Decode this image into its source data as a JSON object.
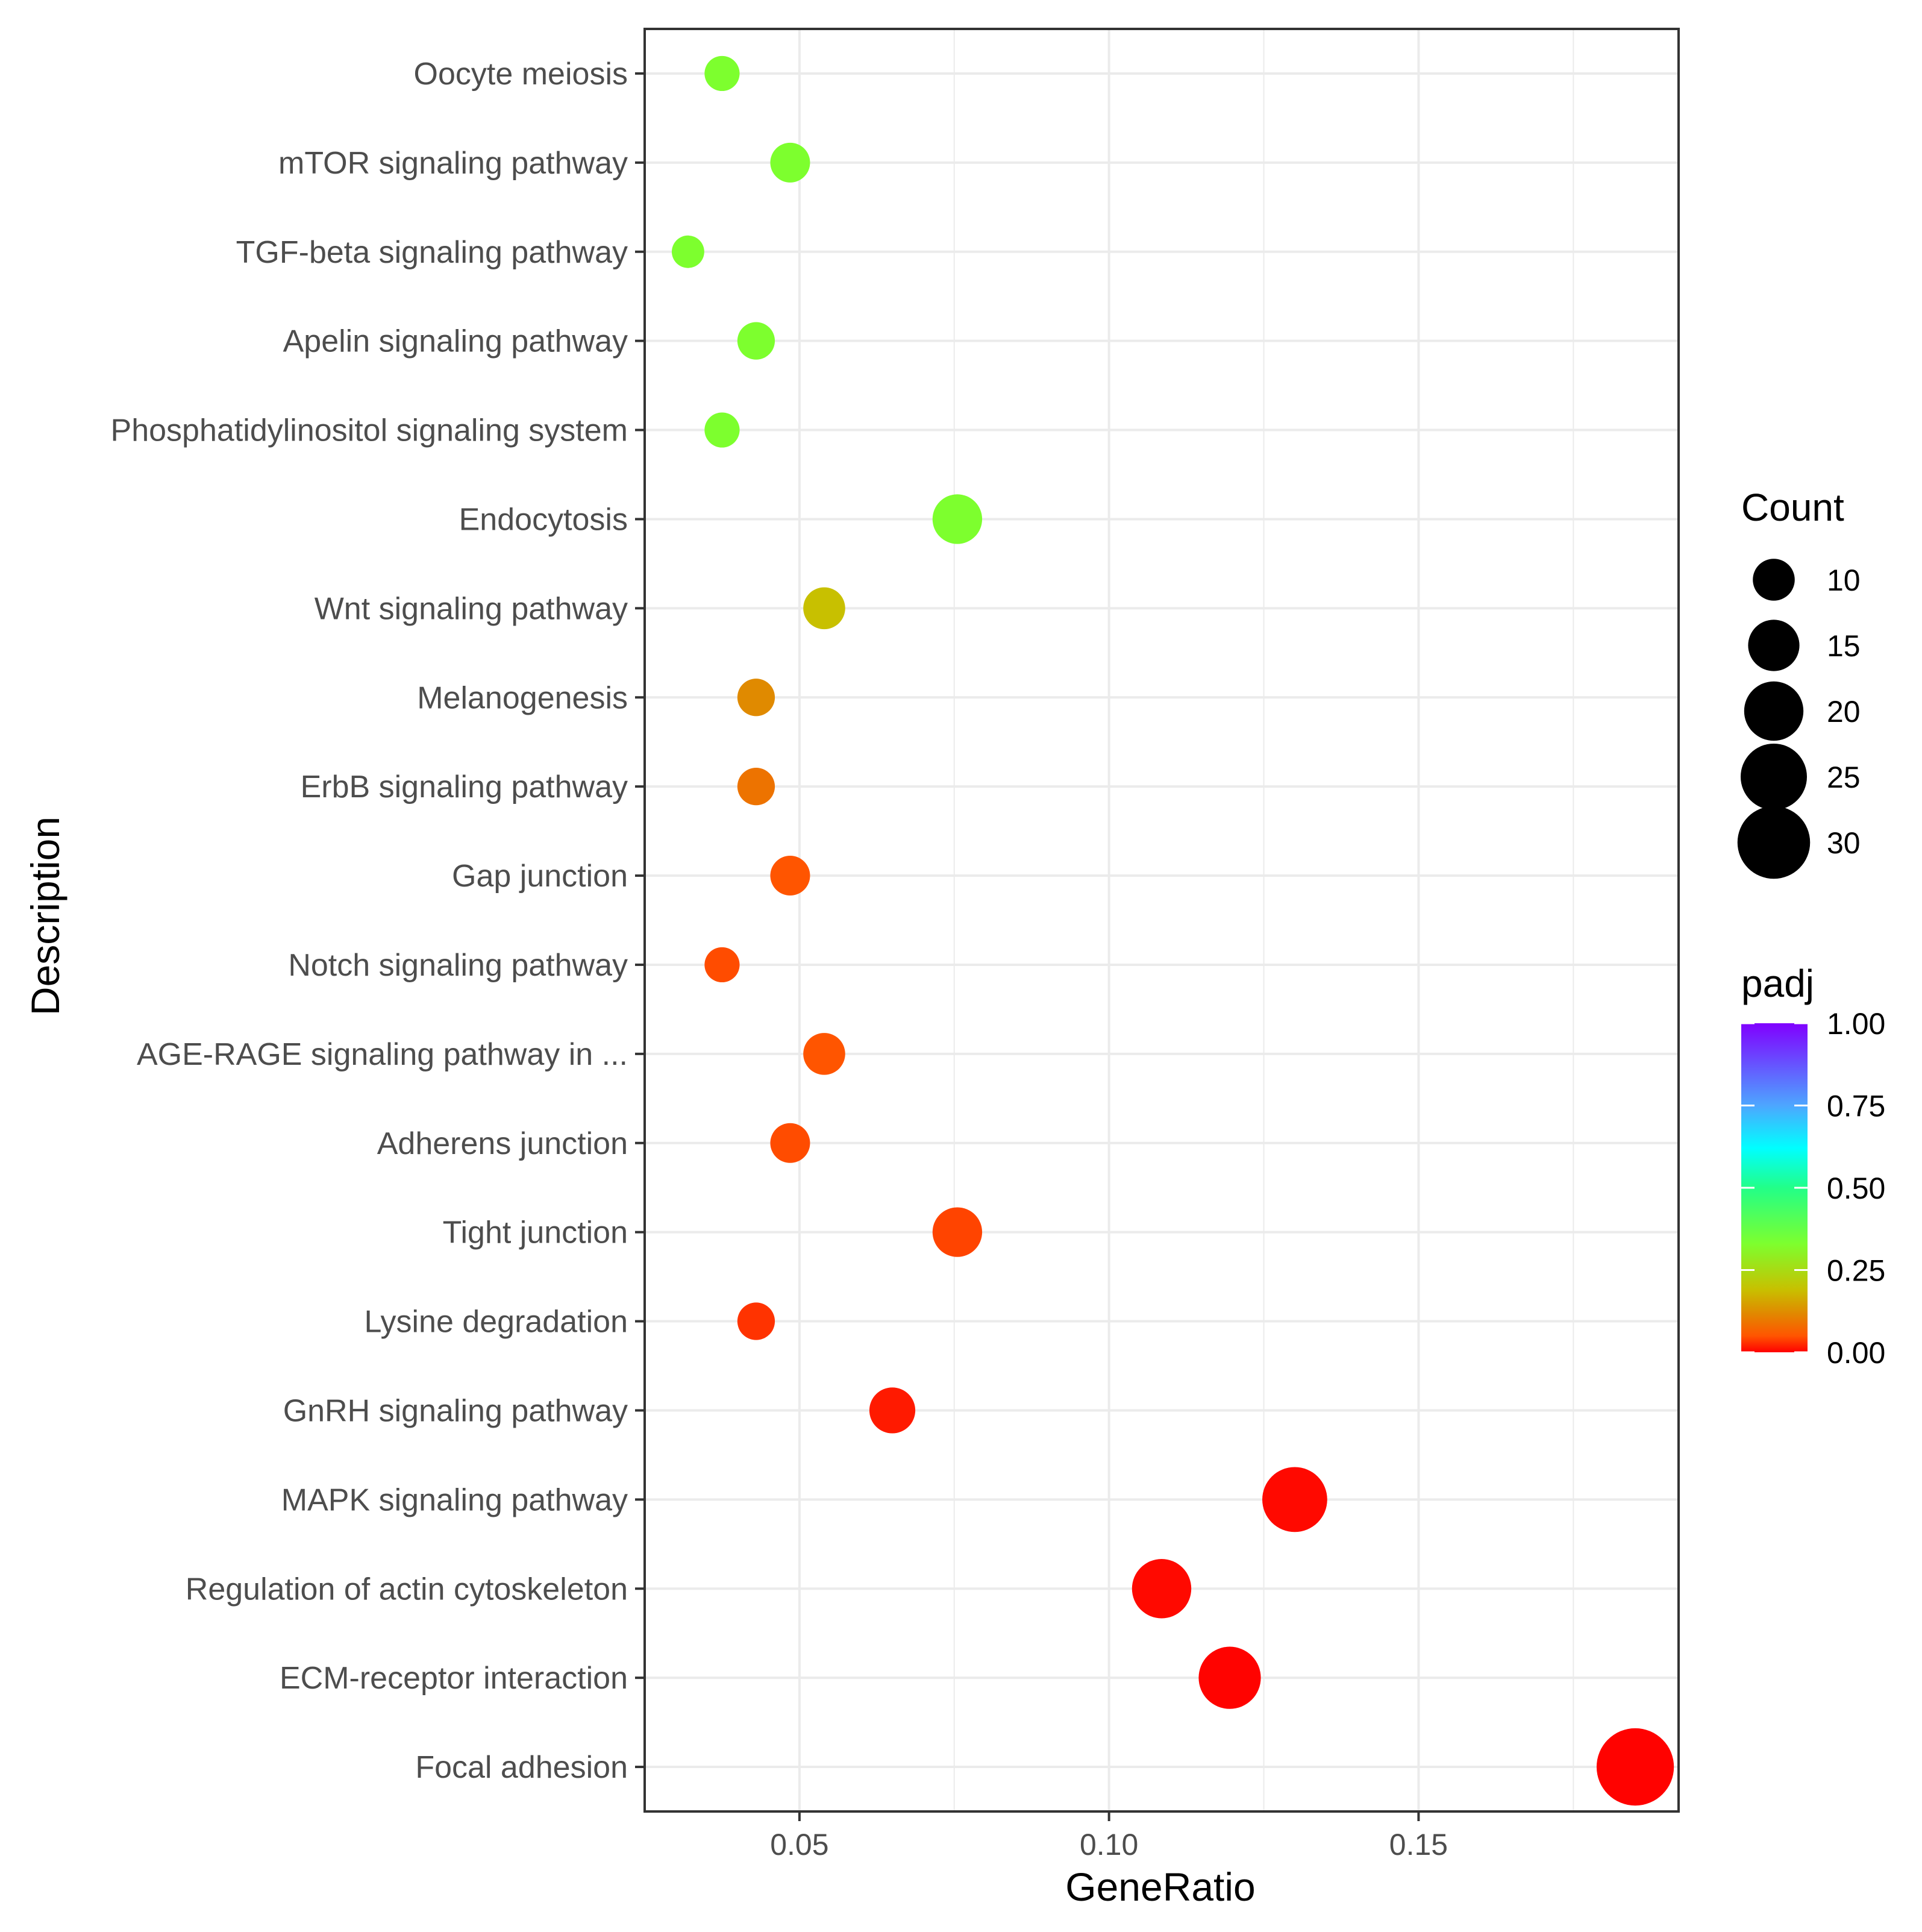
{
  "chart_data": {
    "type": "scatter",
    "subtype": "dot-plot",
    "xlabel": "GeneRatio",
    "ylabel": "Description",
    "xlim": [
      0.025,
      0.192
    ],
    "xticks": [
      0.05,
      0.1,
      0.15
    ],
    "xtick_labels": [
      "0.05",
      "0.10",
      "0.15"
    ],
    "grid": true,
    "legend_position": "right",
    "categories": [
      "Oocyte meiosis",
      "mTOR signaling pathway",
      "TGF-beta signaling pathway",
      "Apelin signaling pathway",
      "Phosphatidylinositol signaling system",
      "Endocytosis",
      "Wnt signaling pathway",
      "Melanogenesis",
      "ErbB signaling pathway",
      "Gap junction",
      "Notch signaling pathway",
      "AGE-RAGE signaling pathway in ...",
      "Adherens junction",
      "Tight junction",
      "Lysine degradation",
      "GnRH signaling pathway",
      "MAPK signaling pathway",
      "Regulation of actin cytoskeleton",
      "ECM-receptor interaction",
      "Focal adhesion"
    ],
    "points": [
      {
        "term": "Oocyte meiosis",
        "gene_ratio": 0.0375,
        "count": 7,
        "padj": 0.33
      },
      {
        "term": "mTOR signaling pathway",
        "gene_ratio": 0.0485,
        "count": 9,
        "padj": 0.33
      },
      {
        "term": "TGF-beta signaling pathway",
        "gene_ratio": 0.032,
        "count": 6,
        "padj": 0.33
      },
      {
        "term": "Apelin signaling pathway",
        "gene_ratio": 0.043,
        "count": 8,
        "padj": 0.33
      },
      {
        "term": "Phosphatidylinositol signaling system",
        "gene_ratio": 0.0375,
        "count": 7,
        "padj": 0.33
      },
      {
        "term": "Endocytosis",
        "gene_ratio": 0.0755,
        "count": 14,
        "padj": 0.33
      },
      {
        "term": "Wnt signaling pathway",
        "gene_ratio": 0.054,
        "count": 10,
        "padj": 0.19
      },
      {
        "term": "Melanogenesis",
        "gene_ratio": 0.043,
        "count": 8,
        "padj": 0.12
      },
      {
        "term": "ErbB signaling pathway",
        "gene_ratio": 0.043,
        "count": 8,
        "padj": 0.09
      },
      {
        "term": "Gap junction",
        "gene_ratio": 0.0485,
        "count": 9,
        "padj": 0.05
      },
      {
        "term": "Notch signaling pathway",
        "gene_ratio": 0.0375,
        "count": 7,
        "padj": 0.045
      },
      {
        "term": "AGE-RAGE signaling pathway in ...",
        "gene_ratio": 0.054,
        "count": 10,
        "padj": 0.05
      },
      {
        "term": "Adherens junction",
        "gene_ratio": 0.0485,
        "count": 9,
        "padj": 0.045
      },
      {
        "term": "Tight junction",
        "gene_ratio": 0.0755,
        "count": 14,
        "padj": 0.04
      },
      {
        "term": "Lysine degradation",
        "gene_ratio": 0.043,
        "count": 8,
        "padj": 0.03
      },
      {
        "term": "GnRH signaling pathway",
        "gene_ratio": 0.065,
        "count": 12,
        "padj": 0.015
      },
      {
        "term": "MAPK signaling pathway",
        "gene_ratio": 0.13,
        "count": 24,
        "padj": 0.005
      },
      {
        "term": "Regulation of actin cytoskeleton",
        "gene_ratio": 0.1085,
        "count": 20,
        "padj": 0.005
      },
      {
        "term": "ECM-receptor interaction",
        "gene_ratio": 0.1195,
        "count": 22,
        "padj": 0.002
      },
      {
        "term": "Focal adhesion",
        "gene_ratio": 0.185,
        "count": 34,
        "padj": 0.001
      }
    ],
    "size_legend": {
      "title": "Count",
      "values": [
        10,
        15,
        20,
        25,
        30
      ],
      "labels": [
        "10",
        "15",
        "20",
        "25",
        "30"
      ]
    },
    "color_legend": {
      "title": "padj",
      "values": [
        1.0,
        0.75,
        0.5,
        0.25,
        0.0
      ],
      "labels": [
        "1.00",
        "0.75",
        "0.50",
        "0.25",
        "0.00"
      ],
      "stops": [
        {
          "value": 0.0,
          "color": "#ff0000"
        },
        {
          "value": 0.05,
          "color": "#ff5500"
        },
        {
          "value": 0.12,
          "color": "#e08a00"
        },
        {
          "value": 0.19,
          "color": "#c8c000"
        },
        {
          "value": 0.33,
          "color": "#7dff2e"
        },
        {
          "value": 0.5,
          "color": "#22ff88"
        },
        {
          "value": 0.62,
          "color": "#00ffff"
        },
        {
          "value": 0.75,
          "color": "#4da6ff"
        },
        {
          "value": 1.0,
          "color": "#8000ff"
        }
      ]
    },
    "colors": {
      "grid": "#ebebeb",
      "panel_border": "#333333",
      "tick_text": "#4d4d4d",
      "title_text": "#000000",
      "legend_point": "#000000"
    }
  }
}
